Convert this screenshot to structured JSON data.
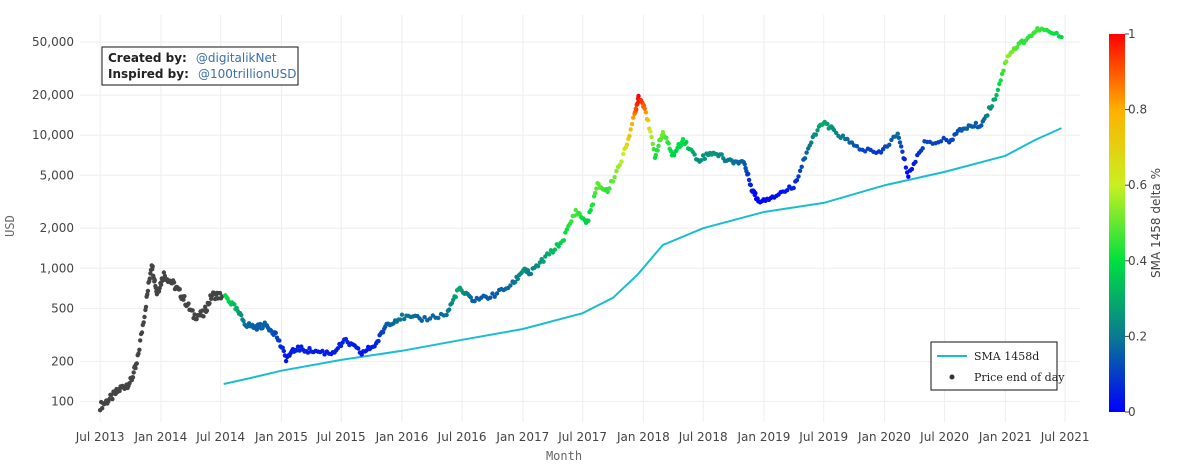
{
  "credits": {
    "created_label": "Created by:",
    "created_handle": "@digitalikNet",
    "inspired_label": "Inspired by:",
    "inspired_handle": "@100trillionUSD"
  },
  "chart_data": {
    "type": "scatter",
    "xlabel": "Month",
    "ylabel": "USD",
    "y_scale": "log",
    "ylim": [
      70,
      80000
    ],
    "xlim": [
      "2013-05-01",
      "2021-08-15"
    ],
    "x_ticks": [
      "Jul 2013",
      "Jan 2014",
      "Jul 2014",
      "Jan 2015",
      "Jul 2015",
      "Jan 2016",
      "Jul 2016",
      "Jan 2017",
      "Jul 2017",
      "Jan 2018",
      "Jul 2018",
      "Jan 2019",
      "Jul 2019",
      "Jan 2020",
      "Jul 2020",
      "Jan 2021",
      "Jul 2021"
    ],
    "y_ticks": [
      {
        "value": 100,
        "label": "100"
      },
      {
        "value": 200,
        "label": "200"
      },
      {
        "value": 500,
        "label": "500"
      },
      {
        "value": 1000,
        "label": "1,000"
      },
      {
        "value": 2000,
        "label": "2,000"
      },
      {
        "value": 5000,
        "label": "5,000"
      },
      {
        "value": 10000,
        "label": "10,000"
      },
      {
        "value": 20000,
        "label": "20,000"
      },
      {
        "value": 50000,
        "label": "50,000"
      }
    ],
    "grid": true,
    "legend_position": "bottom-right",
    "legend": [
      "SMA 1458d",
      "Price end of day"
    ],
    "colorbar": {
      "title": "SMA 1458 delta %",
      "ticks": [
        0,
        0.2,
        0.4,
        0.6,
        0.8,
        1
      ],
      "colorscale": [
        "#0000ff",
        "#0a7a90",
        "#00e040",
        "#c8f020",
        "#ffb000",
        "#ff0000"
      ]
    },
    "colors": {
      "sma": "#17becf",
      "no_sma": "#444444"
    },
    "sma_1458d": [
      [
        "2014-07-10",
        135
      ],
      [
        "2014-10-01",
        150
      ],
      [
        "2015-01-01",
        170
      ],
      [
        "2015-07-01",
        205
      ],
      [
        "2016-01-01",
        240
      ],
      [
        "2016-07-01",
        290
      ],
      [
        "2017-01-01",
        350
      ],
      [
        "2017-07-01",
        460
      ],
      [
        "2017-10-01",
        600
      ],
      [
        "2017-12-15",
        900
      ],
      [
        "2018-03-01",
        1500
      ],
      [
        "2018-07-01",
        2000
      ],
      [
        "2019-01-01",
        2650
      ],
      [
        "2019-07-01",
        3100
      ],
      [
        "2020-01-01",
        4200
      ],
      [
        "2020-07-01",
        5300
      ],
      [
        "2021-01-01",
        7000
      ],
      [
        "2021-04-01",
        9200
      ],
      [
        "2021-06-20",
        11300
      ]
    ],
    "price_no_sma": [
      [
        "2013-07-01",
        92
      ],
      [
        "2013-08-01",
        105
      ],
      [
        "2013-09-01",
        125
      ],
      [
        "2013-10-01",
        140
      ],
      [
        "2013-10-20",
        190
      ],
      [
        "2013-11-15",
        500
      ],
      [
        "2013-12-04",
        1100
      ],
      [
        "2013-12-20",
        650
      ],
      [
        "2014-01-10",
        900
      ],
      [
        "2014-02-10",
        750
      ],
      [
        "2014-03-10",
        600
      ],
      [
        "2014-04-10",
        440
      ],
      [
        "2014-05-10",
        450
      ],
      [
        "2014-06-05",
        630
      ],
      [
        "2014-07-05",
        620
      ]
    ],
    "price_colored": [
      [
        "2014-07-15",
        620,
        0.4
      ],
      [
        "2014-08-15",
        500,
        0.32
      ],
      [
        "2014-09-15",
        380,
        0.18
      ],
      [
        "2014-10-15",
        360,
        0.15
      ],
      [
        "2014-11-15",
        375,
        0.16
      ],
      [
        "2014-12-15",
        320,
        0.12
      ],
      [
        "2015-01-15",
        210,
        0.03
      ],
      [
        "2015-02-15",
        250,
        0.05
      ],
      [
        "2015-04-01",
        240,
        0.05
      ],
      [
        "2015-06-01",
        230,
        0.04
      ],
      [
        "2015-07-15",
        285,
        0.06
      ],
      [
        "2015-09-01",
        230,
        0.03
      ],
      [
        "2015-10-15",
        270,
        0.05
      ],
      [
        "2015-11-15",
        380,
        0.15
      ],
      [
        "2016-01-01",
        430,
        0.2
      ],
      [
        "2016-03-01",
        415,
        0.16
      ],
      [
        "2016-05-15",
        450,
        0.18
      ],
      [
        "2016-06-20",
        700,
        0.3
      ],
      [
        "2016-08-01",
        580,
        0.16
      ],
      [
        "2016-10-01",
        620,
        0.14
      ],
      [
        "2016-12-01",
        760,
        0.18
      ],
      [
        "2017-01-05",
        1000,
        0.26
      ],
      [
        "2017-01-20",
        900,
        0.2
      ],
      [
        "2017-03-10",
        1200,
        0.28
      ],
      [
        "2017-05-01",
        1600,
        0.38
      ],
      [
        "2017-06-10",
        2700,
        0.48
      ],
      [
        "2017-07-15",
        2200,
        0.36
      ],
      [
        "2017-08-15",
        4200,
        0.5
      ],
      [
        "2017-09-15",
        3800,
        0.44
      ],
      [
        "2017-11-01",
        7000,
        0.6
      ],
      [
        "2017-12-05",
        14000,
        0.85
      ],
      [
        "2017-12-17",
        19500,
        1.0
      ],
      [
        "2018-01-05",
        16500,
        0.88
      ],
      [
        "2018-02-05",
        7000,
        0.4
      ],
      [
        "2018-03-01",
        10500,
        0.52
      ],
      [
        "2018-04-01",
        7000,
        0.36
      ],
      [
        "2018-05-01",
        9300,
        0.4
      ],
      [
        "2018-06-15",
        6500,
        0.24
      ],
      [
        "2018-08-01",
        7500,
        0.26
      ],
      [
        "2018-09-15",
        6400,
        0.2
      ],
      [
        "2018-11-01",
        6300,
        0.16
      ],
      [
        "2018-11-25",
        4000,
        0.03
      ],
      [
        "2018-12-15",
        3200,
        0.0
      ],
      [
        "2019-02-01",
        3500,
        0.02
      ],
      [
        "2019-04-01",
        4100,
        0.05
      ],
      [
        "2019-05-15",
        8000,
        0.18
      ],
      [
        "2019-06-26",
        12500,
        0.3
      ],
      [
        "2019-08-01",
        10800,
        0.24
      ],
      [
        "2019-10-01",
        8300,
        0.14
      ],
      [
        "2019-12-15",
        7200,
        0.08
      ],
      [
        "2020-02-10",
        10200,
        0.18
      ],
      [
        "2020-03-13",
        5000,
        0.0
      ],
      [
        "2020-05-01",
        8800,
        0.12
      ],
      [
        "2020-07-15",
        9200,
        0.1
      ],
      [
        "2020-09-01",
        11500,
        0.16
      ],
      [
        "2020-10-20",
        12000,
        0.14
      ],
      [
        "2020-12-01",
        19000,
        0.3
      ],
      [
        "2021-01-08",
        40000,
        0.55
      ],
      [
        "2021-02-20",
        50000,
        0.44
      ],
      [
        "2021-04-14",
        63000,
        0.46
      ],
      [
        "2021-06-20",
        55000,
        0.38
      ]
    ]
  }
}
